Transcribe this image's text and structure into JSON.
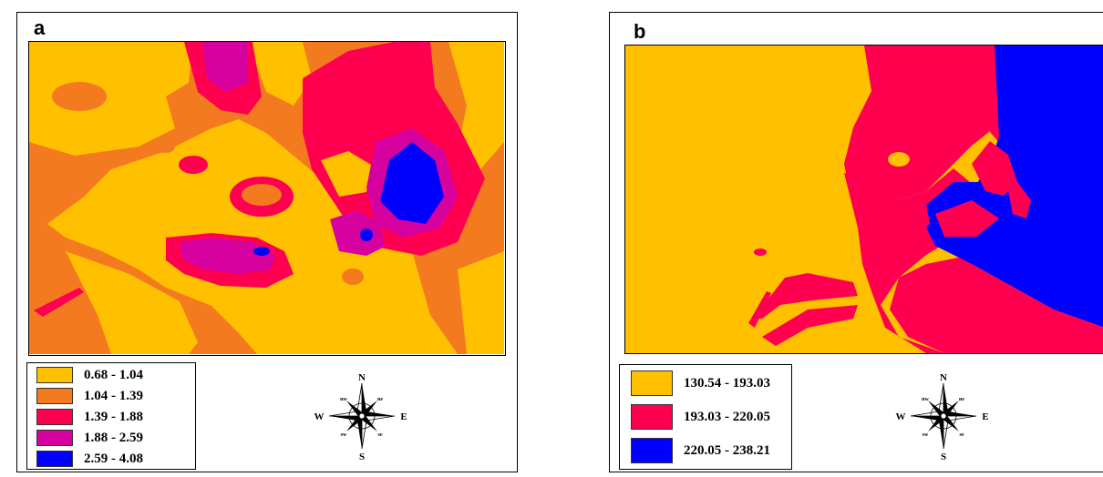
{
  "panel_a": {
    "letter": "a",
    "legend": [
      {
        "label": "0.68 - 1.04",
        "color": "#FFC000"
      },
      {
        "label": "1.04 - 1.39",
        "color": "#F47A20"
      },
      {
        "label": "1.39 - 1.88",
        "color": "#FF0050"
      },
      {
        "label": "1.88 - 2.59",
        "color": "#D6009E"
      },
      {
        "label": "2.59 - 4.08",
        "color": "#0000FF"
      }
    ]
  },
  "panel_b": {
    "letter": "b",
    "legend": [
      {
        "label": "130.54 - 193.03",
        "color": "#FFC000"
      },
      {
        "label": "193.03 - 220.05",
        "color": "#FF0050"
      },
      {
        "label": "220.05 - 238.21",
        "color": "#0000FF"
      }
    ]
  },
  "compass": {
    "north": "N",
    "south": "S",
    "east": "E",
    "west": "W",
    "ne": "ne",
    "nw": "nw",
    "se": "se",
    "sw": "sw"
  }
}
